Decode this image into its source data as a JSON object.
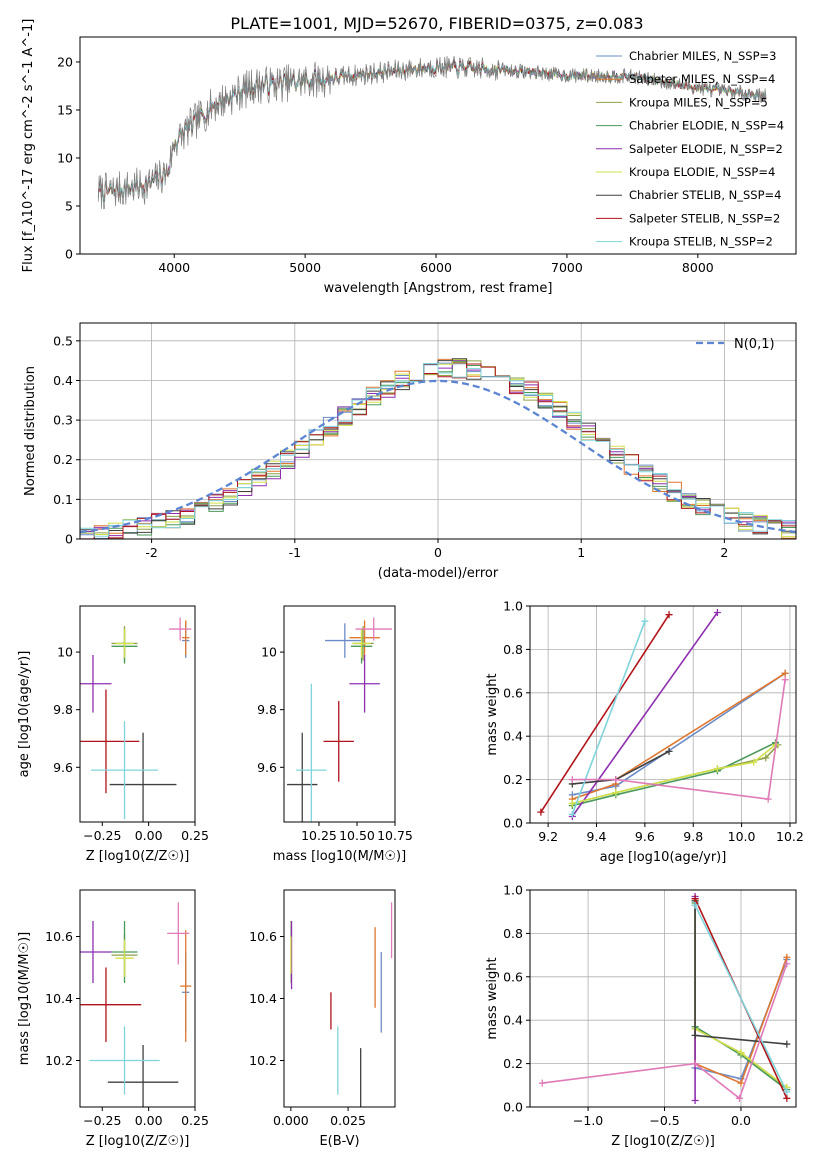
{
  "figure": {
    "title": "PLATE=1001, MJD=52670, FIBERID=0375, z=0.083"
  },
  "colors": {
    "Chabrier MILES": "#6b8cc7",
    "Salpeter MILES": "#e0772f",
    "Kroupa MILES": "#8da24a",
    "Chabrier ELODIE": "#4a9a5a",
    "Salpeter ELODIE": "#8e2fb0",
    "Kroupa ELODIE": "#d2e04a",
    "Chabrier STELIB": "#404040",
    "Salpeter STELIB": "#b0141a",
    "Kroupa STELIB": "#7fd4dc",
    "pink": "#e07ab8",
    "gauss": "#5b84d2"
  },
  "chart_data": [
    {
      "id": "spectrum",
      "type": "line",
      "xlabel": "wavelength [Angstrom, rest frame]",
      "ylabel": "Flux [f_λ10^-17 erg cm^-2 s^-1 A^-1]",
      "xlim": [
        3280,
        8750
      ],
      "ylim": [
        0,
        22.6
      ],
      "xticks": [
        4000,
        5000,
        6000,
        7000,
        8000
      ],
      "yticks": [
        0,
        5,
        10,
        15,
        20
      ],
      "grid": false,
      "legend": "top-right",
      "series": [
        {
          "name": "Chabrier MILES, N_SSP=3",
          "key": "Chabrier MILES"
        },
        {
          "name": "Salpeter MILES, N_SSP=4",
          "key": "Salpeter MILES"
        },
        {
          "name": "Kroupa MILES, N_SSP=5",
          "key": "Kroupa MILES"
        },
        {
          "name": "Chabrier ELODIE, N_SSP=4",
          "key": "Chabrier ELODIE"
        },
        {
          "name": "Salpeter ELODIE, N_SSP=2",
          "key": "Salpeter ELODIE"
        },
        {
          "name": "Kroupa ELODIE, N_SSP=4",
          "key": "Kroupa ELODIE"
        },
        {
          "name": "Chabrier STELIB, N_SSP=4",
          "key": "Chabrier STELIB"
        },
        {
          "name": "Salpeter STELIB, N_SSP=2",
          "key": "Salpeter STELIB"
        },
        {
          "name": "Kroupa STELIB, N_SSP=2",
          "key": "Kroupa STELIB"
        }
      ],
      "continuum": {
        "x": [
          3500,
          3800,
          3950,
          4000,
          4100,
          4300,
          4600,
          5000,
          5500,
          6000,
          6500,
          7000,
          7500,
          8000,
          8500
        ],
        "y": [
          6.5,
          7.2,
          8.5,
          11.5,
          13,
          15.5,
          17.5,
          18,
          18.8,
          19.5,
          19.2,
          18.6,
          18.5,
          17.3,
          16.5
        ]
      },
      "data_range": [
        3420,
        8520
      ]
    },
    {
      "id": "residuals",
      "type": "step",
      "xlabel": "(data-model)/error",
      "ylabel": "Normed distribution",
      "xlim": [
        -2.5,
        2.5
      ],
      "ylim": [
        0,
        0.545
      ],
      "xticks": [
        -2,
        -1,
        0,
        1,
        2
      ],
      "yticks": [
        0,
        0.1,
        0.2,
        0.3,
        0.4,
        0.5
      ],
      "grid": true,
      "legend": "top-right",
      "gauss_label": "N(0,1)",
      "bin_width": 0.1,
      "series_keys": [
        "Chabrier MILES",
        "Salpeter MILES",
        "Kroupa MILES",
        "Chabrier ELODIE",
        "Salpeter ELODIE",
        "Kroupa ELODIE",
        "Chabrier STELIB",
        "Salpeter STELIB",
        "Kroupa STELIB"
      ]
    },
    {
      "id": "age_vs_Z",
      "type": "errorbar",
      "xlabel": "Z [log10(Z/Z☉)]",
      "ylabel": "age [log10(age/yr)]",
      "xlim": [
        -0.37,
        0.25
      ],
      "ylim": [
        9.41,
        10.16
      ],
      "xticks": [
        -0.25,
        0,
        0.25
      ],
      "xticklabels": [
        "−0.25",
        "0.00",
        "0.25"
      ],
      "yticks": [
        9.6,
        9.8,
        10.0
      ],
      "points": [
        {
          "c": "Chabrier MILES",
          "x": 0.2,
          "y": 10.04,
          "xe": 0.02,
          "ye": 0.06
        },
        {
          "c": "Salpeter MILES",
          "x": 0.2,
          "y": 10.05,
          "xe": 0.02,
          "ye": 0.06
        },
        {
          "c": "Kroupa MILES",
          "x": -0.13,
          "y": 10.03,
          "xe": 0.07,
          "ye": 0.06
        },
        {
          "c": "Chabrier ELODIE",
          "x": -0.13,
          "y": 10.02,
          "xe": 0.07,
          "ye": 0.06
        },
        {
          "c": "Salpeter ELODIE",
          "x": -0.3,
          "y": 9.89,
          "xe": 0.1,
          "ye": 0.1
        },
        {
          "c": "Kroupa ELODIE",
          "x": -0.13,
          "y": 10.03,
          "xe": 0.05,
          "ye": 0.05
        },
        {
          "c": "Chabrier STELIB",
          "x": -0.03,
          "y": 9.54,
          "xe": 0.18,
          "ye": 0.18
        },
        {
          "c": "Salpeter STELIB",
          "x": -0.23,
          "y": 9.69,
          "xe": 0.18,
          "ye": 0.18
        },
        {
          "c": "Kroupa STELIB",
          "x": -0.13,
          "y": 9.59,
          "xe": 0.18,
          "ye": 0.17
        },
        {
          "c": "pink",
          "x": 0.17,
          "y": 10.08,
          "xe": 0.06,
          "ye": 0.04
        }
      ]
    },
    {
      "id": "age_vs_mass",
      "type": "errorbar",
      "xlabel": "mass [log10(M/M☉)]",
      "ylabel": "",
      "xlim": [
        10.02,
        10.75
      ],
      "ylim": [
        9.41,
        10.16
      ],
      "xticks": [
        10.25,
        10.5,
        10.75
      ],
      "xticklabels": [
        "10.25",
        "10.50",
        "10.75"
      ],
      "yticks": [
        9.6,
        9.8,
        10.0
      ],
      "points": [
        {
          "c": "Chabrier MILES",
          "x": 10.42,
          "y": 10.04,
          "xe": 0.13,
          "ye": 0.06
        },
        {
          "c": "Salpeter MILES",
          "x": 10.55,
          "y": 10.05,
          "xe": 0.1,
          "ye": 0.06
        },
        {
          "c": "Kroupa MILES",
          "x": 10.54,
          "y": 10.03,
          "xe": 0.07,
          "ye": 0.06
        },
        {
          "c": "Chabrier ELODIE",
          "x": 10.53,
          "y": 10.02,
          "xe": 0.07,
          "ye": 0.06
        },
        {
          "c": "Salpeter ELODIE",
          "x": 10.55,
          "y": 9.89,
          "xe": 0.1,
          "ye": 0.1
        },
        {
          "c": "Kroupa ELODIE",
          "x": 10.53,
          "y": 10.03,
          "xe": 0.06,
          "ye": 0.05
        },
        {
          "c": "Chabrier STELIB",
          "x": 10.14,
          "y": 9.54,
          "xe": 0.1,
          "ye": 0.18
        },
        {
          "c": "Salpeter STELIB",
          "x": 10.38,
          "y": 9.69,
          "xe": 0.1,
          "ye": 0.14
        },
        {
          "c": "Kroupa STELIB",
          "x": 10.2,
          "y": 9.59,
          "xe": 0.1,
          "ye": 0.3
        },
        {
          "c": "pink",
          "x": 10.61,
          "y": 10.08,
          "xe": 0.12,
          "ye": 0.04
        }
      ]
    },
    {
      "id": "weight_vs_age",
      "type": "line",
      "xlabel": "age [log10(age/yr)]",
      "ylabel": "mass weight",
      "xlim": [
        9.125,
        10.225
      ],
      "ylim": [
        0,
        1.0
      ],
      "xticks": [
        9.2,
        9.4,
        9.6,
        9.8,
        10.0,
        10.2
      ],
      "xticklabels": [
        "9.2",
        "9.4",
        "9.6",
        "9.8",
        "10.0",
        "10.2"
      ],
      "yticks": [
        0,
        0.2,
        0.4,
        0.6,
        0.8,
        1.0
      ],
      "yticklabels": [
        "0.0",
        "0.2",
        "0.4",
        "0.6",
        "0.8",
        "1.0"
      ],
      "grid": true,
      "series": [
        {
          "c": "Chabrier MILES",
          "x": [
            9.3,
            9.48,
            10.18
          ],
          "y": [
            0.13,
            0.17,
            0.69
          ]
        },
        {
          "c": "Salpeter MILES",
          "x": [
            9.3,
            9.48,
            9.48,
            10.18
          ],
          "y": [
            0.11,
            0.18,
            0.2,
            0.69
          ]
        },
        {
          "c": "Kroupa MILES",
          "x": [
            9.3,
            9.48,
            9.9,
            10.1,
            10.15
          ],
          "y": [
            0.09,
            0.14,
            0.25,
            0.3,
            0.36
          ]
        },
        {
          "c": "Chabrier ELODIE",
          "x": [
            9.3,
            9.48,
            9.9,
            10.14
          ],
          "y": [
            0.08,
            0.13,
            0.24,
            0.37
          ]
        },
        {
          "c": "Salpeter ELODIE",
          "x": [
            9.3,
            9.9
          ],
          "y": [
            0.03,
            0.97
          ]
        },
        {
          "c": "Kroupa ELODIE",
          "x": [
            9.3,
            9.48,
            9.9,
            10.05,
            10.14
          ],
          "y": [
            0.09,
            0.14,
            0.25,
            0.28,
            0.36
          ]
        },
        {
          "c": "Chabrier STELIB",
          "x": [
            9.3,
            9.48,
            9.7
          ],
          "y": [
            0.18,
            0.2,
            0.33
          ]
        },
        {
          "c": "Salpeter STELIB",
          "x": [
            9.17,
            9.7
          ],
          "y": [
            0.05,
            0.96
          ]
        },
        {
          "c": "Kroupa STELIB",
          "x": [
            9.3,
            9.6
          ],
          "y": [
            0.04,
            0.93
          ]
        },
        {
          "c": "pink",
          "x": [
            9.3,
            9.48,
            10.11,
            10.18
          ],
          "y": [
            0.2,
            0.2,
            0.11,
            0.66
          ]
        }
      ]
    },
    {
      "id": "mass_vs_Z",
      "type": "errorbar",
      "xlabel": "Z [log10(Z/Z☉)]",
      "ylabel": "mass [log10(M/M☉)]",
      "xlim": [
        -0.37,
        0.25
      ],
      "ylim": [
        10.05,
        10.75
      ],
      "xticks": [
        -0.25,
        0,
        0.25
      ],
      "xticklabels": [
        "−0.25",
        "0.00",
        "0.25"
      ],
      "yticks": [
        10.2,
        10.4,
        10.6
      ],
      "points": [
        {
          "c": "Chabrier MILES",
          "x": 0.2,
          "y": 10.42,
          "xe": 0.02,
          "ye": 0.13
        },
        {
          "c": "Salpeter MILES",
          "x": 0.2,
          "y": 10.44,
          "xe": 0.03,
          "ye": 0.18
        },
        {
          "c": "Kroupa MILES",
          "x": -0.13,
          "y": 10.54,
          "xe": 0.07,
          "ye": 0.07
        },
        {
          "c": "Chabrier ELODIE",
          "x": -0.13,
          "y": 10.55,
          "xe": 0.07,
          "ye": 0.1
        },
        {
          "c": "Salpeter ELODIE",
          "x": -0.3,
          "y": 10.55,
          "xe": 0.1,
          "ye": 0.1
        },
        {
          "c": "Kroupa ELODIE",
          "x": -0.13,
          "y": 10.53,
          "xe": 0.05,
          "ye": 0.06
        },
        {
          "c": "Chabrier STELIB",
          "x": -0.03,
          "y": 10.13,
          "xe": 0.19,
          "ye": 0.12
        },
        {
          "c": "Salpeter STELIB",
          "x": -0.23,
          "y": 10.38,
          "xe": 0.19,
          "ye": 0.12
        },
        {
          "c": "Kroupa STELIB",
          "x": -0.13,
          "y": 10.2,
          "xe": 0.19,
          "ye": 0.11
        },
        {
          "c": "pink",
          "x": 0.16,
          "y": 10.61,
          "xe": 0.06,
          "ye": 0.1
        }
      ]
    },
    {
      "id": "mass_vs_EBV",
      "type": "errorbar",
      "xlabel": "E(B-V)",
      "ylabel": "",
      "xlim": [
        -0.003,
        0.0455
      ],
      "ylim": [
        10.05,
        10.75
      ],
      "xticks": [
        0,
        0.025
      ],
      "xticklabels": [
        "0.000",
        "0.025"
      ],
      "yticks": [
        10.2,
        10.4,
        10.6
      ],
      "points": [
        {
          "c": "Chabrier MILES",
          "x": 0.0395,
          "y": 10.42,
          "xe": 0,
          "ye": 0.13
        },
        {
          "c": "Salpeter MILES",
          "x": 0.0368,
          "y": 10.5,
          "xe": 0,
          "ye": 0.13
        },
        {
          "c": "Kroupa MILES",
          "x": 0.0001,
          "y": 10.55,
          "xe": 0,
          "ye": 0.1
        },
        {
          "c": "Chabrier ELODIE",
          "x": 0.0002,
          "y": 10.56,
          "xe": 0,
          "ye": 0.07
        },
        {
          "c": "Salpeter ELODIE",
          "x": 0.0003,
          "y": 10.54,
          "xe": 0,
          "ye": 0.11
        },
        {
          "c": "Kroupa ELODIE",
          "x": 0.0,
          "y": 10.54,
          "xe": 0,
          "ye": 0.06
        },
        {
          "c": "Chabrier STELIB",
          "x": 0.0305,
          "y": 10.12,
          "xe": 0,
          "ye": 0.12
        },
        {
          "c": "Salpeter STELIB",
          "x": 0.0175,
          "y": 10.36,
          "xe": 0,
          "ye": 0.06
        },
        {
          "c": "Kroupa STELIB",
          "x": 0.0205,
          "y": 10.2,
          "xe": 0,
          "ye": 0.11
        },
        {
          "c": "pink",
          "x": 0.044,
          "y": 10.62,
          "xe": 0,
          "ye": 0.09
        }
      ]
    },
    {
      "id": "weight_vs_Z",
      "type": "line",
      "xlabel": "Z [log10(Z/Z☉)]",
      "ylabel": "mass weight",
      "xlim": [
        -1.38,
        0.36
      ],
      "ylim": [
        0,
        1.0
      ],
      "xticks": [
        -1.0,
        -0.5,
        0.0
      ],
      "xticklabels": [
        "−1.0",
        "−0.5",
        "0.0"
      ],
      "yticks": [
        0,
        0.2,
        0.4,
        0.6,
        0.8,
        1.0
      ],
      "yticklabels": [
        "0.0",
        "0.2",
        "0.4",
        "0.6",
        "0.8",
        "1.0"
      ],
      "grid": true,
      "series": [
        {
          "c": "Chabrier MILES",
          "x": [
            -0.3,
            -0.3,
            0.0,
            0.3
          ],
          "y": [
            0.95,
            0.18,
            0.13,
            0.68
          ]
        },
        {
          "c": "Salpeter MILES",
          "x": [
            -0.3,
            -0.3,
            0.0,
            0.3
          ],
          "y": [
            0.96,
            0.2,
            0.11,
            0.69
          ]
        },
        {
          "c": "Kroupa MILES",
          "x": [
            -0.3,
            -0.3,
            0.0,
            0.3
          ],
          "y": [
            0.93,
            0.36,
            0.25,
            0.09
          ]
        },
        {
          "c": "Chabrier ELODIE",
          "x": [
            -0.3,
            -0.3,
            0.0,
            0.3
          ],
          "y": [
            0.94,
            0.37,
            0.24,
            0.08
          ]
        },
        {
          "c": "Salpeter ELODIE",
          "x": [
            -0.3,
            -0.3
          ],
          "y": [
            0.97,
            0.03
          ]
        },
        {
          "c": "Kroupa ELODIE",
          "x": [
            -0.3,
            -0.3,
            0.0,
            0.3
          ],
          "y": [
            0.95,
            0.36,
            0.25,
            0.09
          ]
        },
        {
          "c": "Chabrier STELIB",
          "x": [
            -0.3,
            -0.3,
            0.3
          ],
          "y": [
            0.95,
            0.33,
            0.29
          ]
        },
        {
          "c": "Salpeter STELIB",
          "x": [
            -0.3,
            0.3
          ],
          "y": [
            0.96,
            0.04
          ]
        },
        {
          "c": "Kroupa STELIB",
          "x": [
            -0.3,
            0.3
          ],
          "y": [
            0.93,
            0.07
          ]
        },
        {
          "c": "pink",
          "x": [
            -1.3,
            -0.3,
            -0.01,
            0.3
          ],
          "y": [
            0.11,
            0.2,
            0.04,
            0.66
          ]
        }
      ]
    }
  ]
}
